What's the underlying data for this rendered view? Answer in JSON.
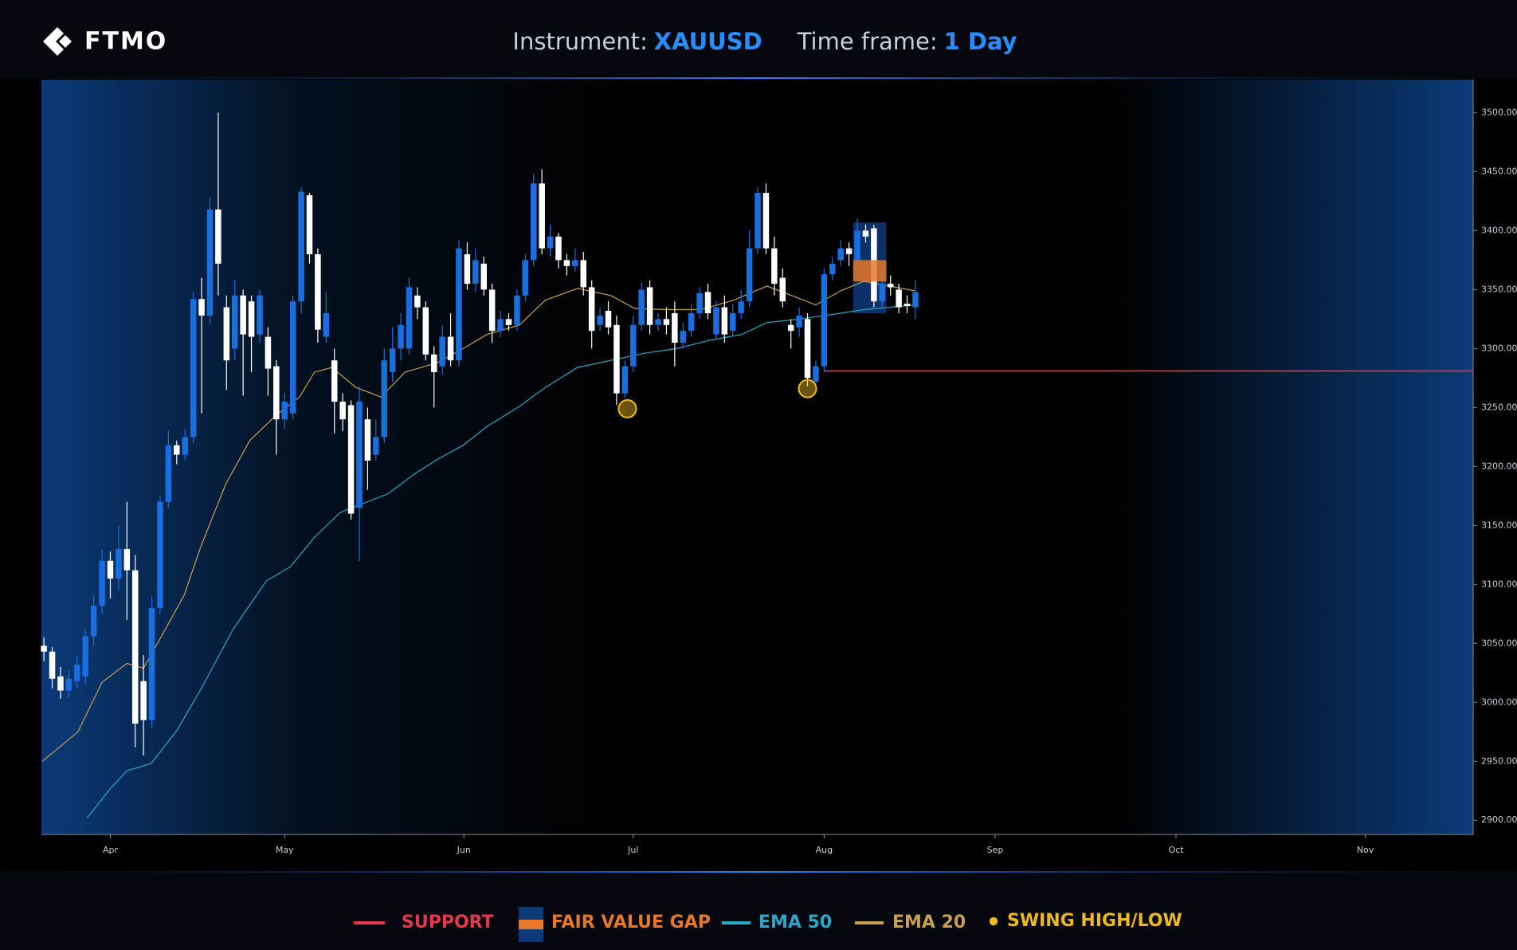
{
  "header": {
    "logo": "FTMO",
    "instrument_label": "Instrument:",
    "instrument": "XAUUSD",
    "timeframe_label": "Time frame:",
    "timeframe": "1 Day"
  },
  "chart_data": {
    "type": "candlestick",
    "xlim": [
      -0.3,
      172.2
    ],
    "xticks": [
      {
        "value": 8,
        "label": "Apr"
      },
      {
        "value": 29,
        "label": "May"
      },
      {
        "value": 50.6,
        "label": "Jun"
      },
      {
        "value": 71,
        "label": "Jul"
      },
      {
        "value": 94,
        "label": "Aug"
      },
      {
        "value": 114.6,
        "label": "Sep"
      },
      {
        "value": 136.4,
        "label": "Oct"
      },
      {
        "value": 159.2,
        "label": "Nov"
      }
    ],
    "ylim": [
      2888,
      3528
    ],
    "yticks": [
      {
        "value": 2900,
        "label": "2900.00"
      },
      {
        "value": 2950,
        "label": "2950.00"
      },
      {
        "value": 3000,
        "label": "3000.00"
      },
      {
        "value": 3050,
        "label": "3050.00"
      },
      {
        "value": 3100,
        "label": "3100.00"
      },
      {
        "value": 3150,
        "label": "3150.00"
      },
      {
        "value": 3200,
        "label": "3200.00"
      },
      {
        "value": 3250,
        "label": "3250.00"
      },
      {
        "value": 3300,
        "label": "3300.00"
      },
      {
        "value": 3350,
        "label": "3350.00"
      },
      {
        "value": 3400,
        "label": "3400.00"
      },
      {
        "value": 3450,
        "label": "3450.00"
      },
      {
        "value": 3500,
        "label": "3500.00"
      }
    ],
    "candles": {
      "up_color": "#1a6fe0",
      "down_color": "#ffffff",
      "open": [
        3048,
        3043,
        3022,
        3010,
        3018,
        3022,
        3056,
        3082,
        3120,
        3105,
        3130,
        3112,
        3018,
        2985,
        3080,
        3170,
        3218,
        3210,
        3225,
        3342,
        3328,
        3418,
        3335,
        3300,
        3345,
        3340,
        3312,
        3310,
        3285,
        3240,
        3245,
        3340,
        3430,
        3380,
        3310,
        3290,
        3255,
        3252,
        3165,
        3240,
        3210,
        3225,
        3280,
        3300,
        3300,
        3345,
        3335,
        3295,
        3285,
        3310,
        3290,
        3380,
        3355,
        3372,
        3350,
        3315,
        3325,
        3320,
        3345,
        3375,
        3440,
        3385,
        3395,
        3375,
        3370,
        3375,
        3352,
        3320,
        3332,
        3320,
        3262,
        3285,
        3320,
        3352,
        3320,
        3325,
        3330,
        3305,
        3315,
        3330,
        3348,
        3312,
        3335,
        3315,
        3330,
        3340,
        3385,
        3432,
        3385,
        3360,
        3320,
        3318,
        3325,
        3272,
        3285,
        3363,
        3375,
        3385,
        3375,
        3400,
        3402,
        3340,
        3355,
        3350,
        3338,
        3335
      ],
      "high": [
        3055,
        3047,
        3030,
        3028,
        3040,
        3062,
        3090,
        3130,
        3128,
        3150,
        3170,
        3125,
        3040,
        3090,
        3175,
        3230,
        3222,
        3232,
        3348,
        3360,
        3428,
        3500,
        3345,
        3358,
        3350,
        3345,
        3350,
        3318,
        3290,
        3262,
        3345,
        3437,
        3432,
        3385,
        3348,
        3300,
        3262,
        3256,
        3268,
        3250,
        3240,
        3300,
        3318,
        3330,
        3360,
        3352,
        3340,
        3302,
        3320,
        3330,
        3392,
        3390,
        3385,
        3378,
        3355,
        3332,
        3330,
        3350,
        3380,
        3448,
        3452,
        3405,
        3398,
        3380,
        3385,
        3382,
        3358,
        3335,
        3340,
        3328,
        3290,
        3328,
        3356,
        3358,
        3330,
        3335,
        3340,
        3322,
        3338,
        3352,
        3355,
        3340,
        3345,
        3338,
        3350,
        3400,
        3437,
        3440,
        3395,
        3368,
        3325,
        3335,
        3330,
        3290,
        3368,
        3378,
        3392,
        3390,
        3410,
        3405,
        3405,
        3365,
        3362,
        3355,
        3345,
        3358
      ],
      "low": [
        3035,
        3012,
        3003,
        3004,
        3012,
        3015,
        3048,
        3075,
        3088,
        3095,
        3070,
        2962,
        2955,
        2978,
        3075,
        3165,
        3202,
        3205,
        3220,
        3245,
        3320,
        3345,
        3265,
        3290,
        3260,
        3280,
        3305,
        3260,
        3210,
        3232,
        3240,
        3330,
        3372,
        3305,
        3305,
        3228,
        3230,
        3155,
        3120,
        3180,
        3205,
        3220,
        3272,
        3290,
        3295,
        3325,
        3290,
        3250,
        3278,
        3285,
        3285,
        3350,
        3348,
        3345,
        3305,
        3310,
        3315,
        3315,
        3340,
        3370,
        3380,
        3378,
        3368,
        3362,
        3365,
        3345,
        3300,
        3315,
        3312,
        3252,
        3258,
        3280,
        3315,
        3312,
        3315,
        3312,
        3285,
        3300,
        3310,
        3325,
        3325,
        3308,
        3305,
        3310,
        3325,
        3335,
        3380,
        3380,
        3345,
        3335,
        3300,
        3310,
        3268,
        3270,
        3280,
        3358,
        3370,
        3370,
        3370,
        3390,
        3335,
        3335,
        3345,
        3330,
        3330,
        3325
      ],
      "close": [
        3043,
        3020,
        3010,
        3020,
        3032,
        3056,
        3082,
        3120,
        3105,
        3130,
        3112,
        2982,
        2985,
        3080,
        3170,
        3218,
        3210,
        3225,
        3342,
        3328,
        3418,
        3372,
        3290,
        3345,
        3312,
        3310,
        3345,
        3283,
        3240,
        3255,
        3340,
        3433,
        3380,
        3316,
        3330,
        3255,
        3240,
        3160,
        3255,
        3205,
        3225,
        3290,
        3300,
        3320,
        3352,
        3335,
        3295,
        3280,
        3310,
        3290,
        3385,
        3355,
        3375,
        3350,
        3315,
        3325,
        3320,
        3345,
        3375,
        3440,
        3385,
        3395,
        3375,
        3370,
        3375,
        3352,
        3315,
        3328,
        3318,
        3262,
        3285,
        3320,
        3350,
        3320,
        3325,
        3320,
        3305,
        3315,
        3330,
        3347,
        3330,
        3335,
        3312,
        3330,
        3340,
        3385,
        3432,
        3385,
        3355,
        3340,
        3315,
        3328,
        3275,
        3285,
        3363,
        3372,
        3385,
        3380,
        3400,
        3395,
        3340,
        3355,
        3352,
        3335,
        3336,
        3348
      ]
    },
    "series": [
      {
        "name": "EMA 50",
        "color": "#2aa7c9",
        "x": [
          5.2,
          8,
          10,
          12.9,
          16,
          18.9,
          22.8,
          26.8,
          29.7,
          32.6,
          35.7,
          38.6,
          41.5,
          44.5,
          47.4,
          50.5,
          53.4,
          57.3,
          60.4,
          64.3,
          68.3,
          72.3,
          76.2,
          80.2,
          84.1,
          87.1,
          91,
          95,
          98.8,
          104.9
        ],
        "values": [
          2902,
          2927,
          2942,
          2948,
          2976,
          3011,
          3062,
          3103,
          3115,
          3140,
          3161,
          3169,
          3177,
          3193,
          3206,
          3218,
          3234,
          3251,
          3267,
          3284,
          3290,
          3296,
          3300,
          3307,
          3312,
          3322,
          3325,
          3329,
          3333,
          3337
        ]
      },
      {
        "name": "EMA 20",
        "color": "#c9a050",
        "x": [
          -0.2,
          4.1,
          7,
          10,
          12,
          14,
          16.9,
          18.9,
          21.9,
          24.8,
          27.9,
          30.8,
          32.6,
          34.7,
          37.6,
          40.6,
          43.5,
          47.4,
          50.5,
          53.4,
          57.3,
          60.4,
          64.3,
          68.3,
          71.2,
          75.2,
          79.1,
          83.1,
          87.1,
          90.1,
          93,
          96,
          98.8,
          104.9
        ],
        "values": [
          2950,
          2975,
          3017,
          3033,
          3029,
          3054,
          3091,
          3132,
          3185,
          3222,
          3243,
          3259,
          3280,
          3284,
          3267,
          3259,
          3280,
          3288,
          3300,
          3312,
          3320,
          3341,
          3351,
          3345,
          3334,
          3333,
          3333,
          3341,
          3353,
          3345,
          3337,
          3349,
          3357,
          3349
        ]
      }
    ],
    "support": {
      "name": "SUPPORT",
      "color": "#e8364a",
      "value": 3281,
      "x_start": 94
    },
    "fair_value_gap": {
      "name": "FAIR VALUE GAP",
      "color": "#e8782a",
      "zone_color": "#0d3a7a",
      "x": [
        98,
        102
      ],
      "gap": [
        3357,
        3375
      ],
      "zone": [
        3330,
        3407
      ]
    },
    "swing": {
      "name": "SWING HIGH/LOW",
      "color": "#f0b81e",
      "x": [
        70.3,
        92
      ],
      "values": [
        3249,
        3266
      ]
    }
  }
}
